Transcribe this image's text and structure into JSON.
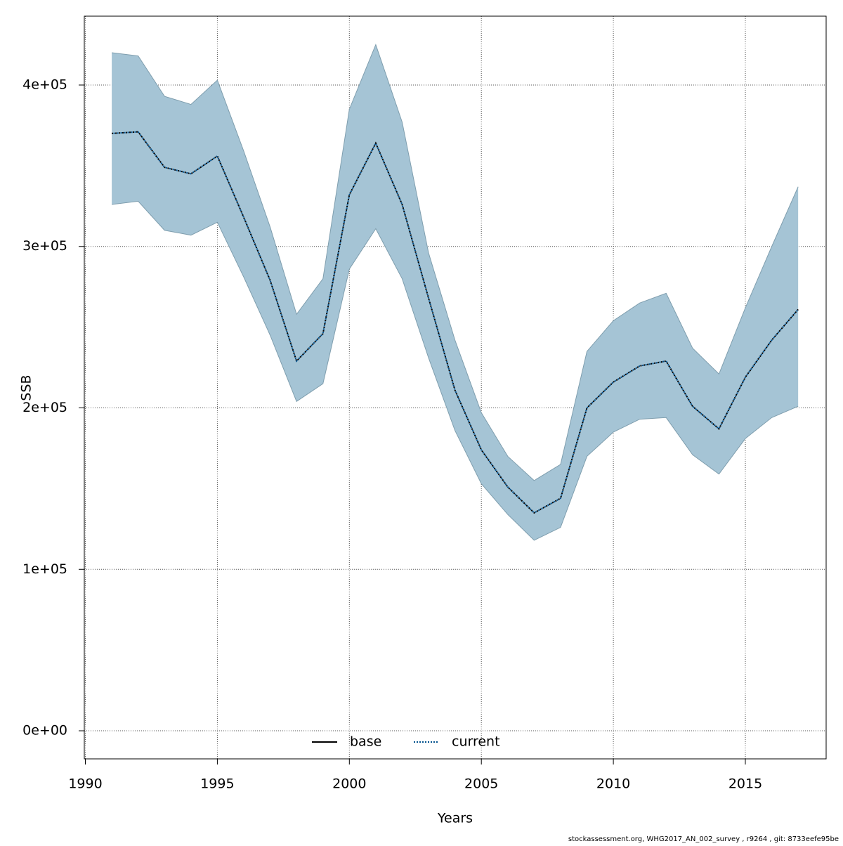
{
  "chart_data": {
    "type": "line",
    "xlabel": "Years",
    "ylabel": "SSB",
    "footer": "stockassessment.org, WHG2017_AN_002_survey , r9264 , git: 8733eefe95be",
    "x": [
      1991,
      1992,
      1993,
      1994,
      1995,
      1996,
      1997,
      1998,
      1999,
      2000,
      2001,
      2002,
      2003,
      2004,
      2005,
      2006,
      2007,
      2008,
      2009,
      2010,
      2011,
      2012,
      2013,
      2014,
      2015,
      2016,
      2017
    ],
    "series": [
      {
        "name": "current",
        "color": "#00508c",
        "band_color": "#a5c4d5",
        "values": [
          370000,
          371000,
          349000,
          345000,
          356000,
          318000,
          279000,
          229000,
          246000,
          332000,
          364000,
          326000,
          268000,
          211000,
          174000,
          151000,
          135000,
          144000,
          200000,
          216000,
          226000,
          229000,
          201000,
          187000,
          219000,
          242000,
          261000
        ],
        "upper": [
          420000,
          418000,
          393000,
          388000,
          403000,
          359000,
          312000,
          258000,
          280000,
          385000,
          425000,
          377000,
          296000,
          242000,
          197000,
          170000,
          155000,
          165000,
          235000,
          254000,
          265000,
          271000,
          237000,
          221000,
          262000,
          300000,
          337000
        ],
        "lower": [
          326000,
          328000,
          310000,
          307000,
          315000,
          281000,
          245000,
          204000,
          215000,
          286000,
          311000,
          280000,
          231000,
          186000,
          153000,
          134000,
          118000,
          126000,
          170000,
          185000,
          193000,
          194000,
          171000,
          159000,
          181000,
          194000,
          201000
        ]
      }
    ],
    "legend": [
      {
        "name": "base",
        "color": "#000000",
        "dash": "solid"
      },
      {
        "name": "current",
        "color": "#00508c",
        "dash": "dotted"
      }
    ],
    "legend_position": "bottom",
    "xlim": [
      1989.96,
      2018.06
    ],
    "ylim": [
      -17400,
      442650
    ],
    "xticks": [
      1990,
      1995,
      2000,
      2005,
      2010,
      2015
    ],
    "yticks": [
      {
        "value": 0,
        "label": "0e+00"
      },
      {
        "value": 100000,
        "label": "1e+05"
      },
      {
        "value": 200000,
        "label": "2e+05"
      },
      {
        "value": 300000,
        "label": "3e+05"
      },
      {
        "value": 400000,
        "label": "4e+05"
      }
    ],
    "grid": true
  }
}
